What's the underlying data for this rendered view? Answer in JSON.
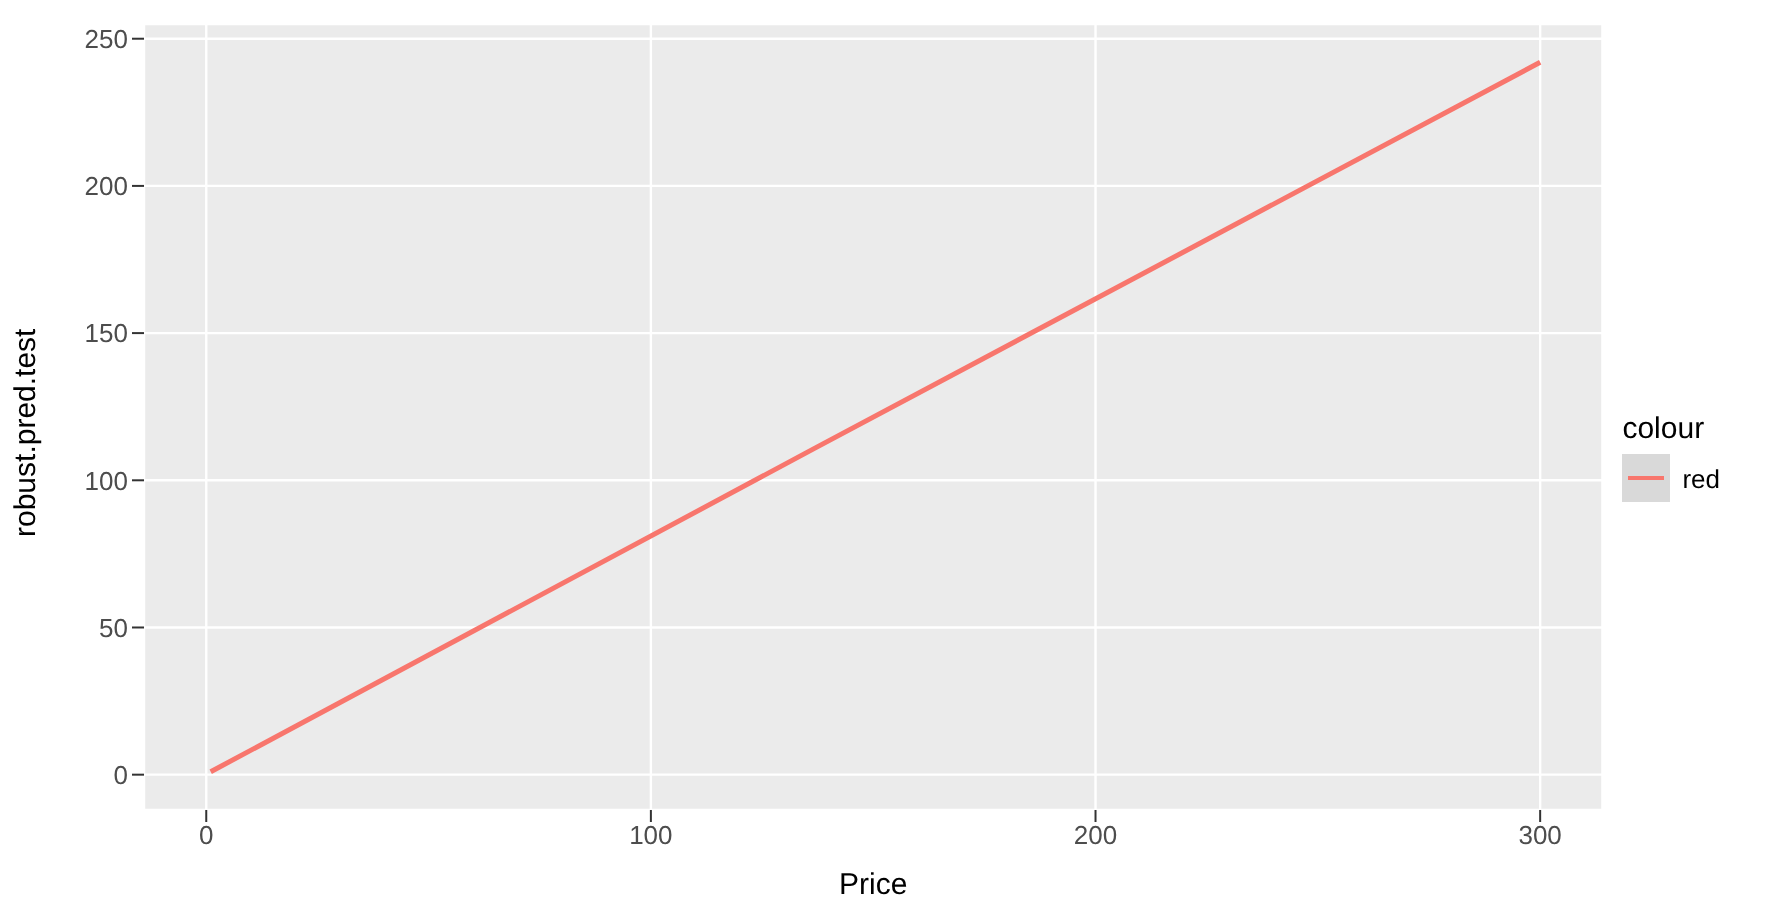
{
  "chart_data": {
    "type": "line",
    "xlabel": "Price",
    "ylabel": "robust.pred.test",
    "legend_title": "colour",
    "legend": "right",
    "grid": true,
    "marker": "none",
    "line_style": "solid",
    "xlim": [
      -14,
      314
    ],
    "xticks": [
      0,
      100,
      200,
      300
    ],
    "ylim": [
      -12,
      255
    ],
    "yticks": [
      0,
      50,
      100,
      150,
      200,
      250
    ],
    "series": [
      {
        "name": "red",
        "color": "#f8766d",
        "x": [
          1,
          137,
          300
        ],
        "values": [
          1,
          111,
          242
        ]
      }
    ]
  }
}
